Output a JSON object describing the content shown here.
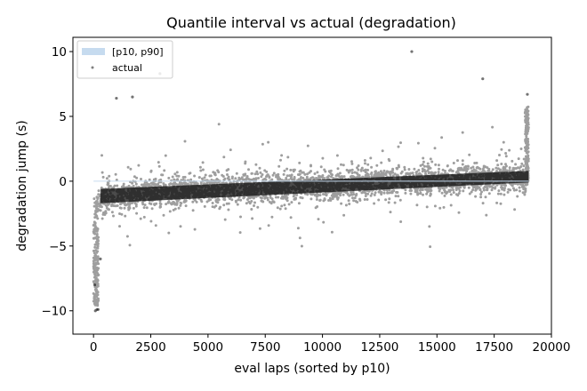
{
  "chart_data": {
    "type": "scatter",
    "title": "Quantile interval vs actual (degradation)",
    "xlabel": "eval laps (sorted by p10)",
    "ylabel": "degradation jump (s)",
    "xlim": [
      -900,
      20000
    ],
    "ylim": [
      -11.8,
      11.1
    ],
    "xticks": [
      0,
      2500,
      5000,
      7500,
      10000,
      12500,
      15000,
      17500,
      20000
    ],
    "xtick_labels": [
      "0",
      "2500",
      "5000",
      "7500",
      "10000",
      "12500",
      "15000",
      "17500",
      "20000"
    ],
    "yticks": [
      -10,
      -5,
      0,
      5,
      10
    ],
    "ytick_labels": [
      "−10",
      "−5",
      "0",
      "5",
      "10"
    ],
    "grid": false,
    "legend_position": "upper-left",
    "series": [
      {
        "name": "[p10, p90]",
        "kind": "band",
        "color": "#c6dbef",
        "x": [
          0,
          19000
        ],
        "lower": [
          0,
          0
        ],
        "upper": [
          0,
          0
        ]
      },
      {
        "name": "actual",
        "kind": "scatter",
        "color": "#000000",
        "x": [
          13900,
          17000,
          18950,
          2900,
          1700,
          1000,
          150,
          80,
          200,
          50,
          300
        ],
        "y": [
          10.0,
          7.9,
          6.7,
          8.3,
          6.5,
          6.4,
          -9.9,
          -10.0,
          -9.9,
          -8.0,
          -6.0
        ]
      }
    ]
  }
}
